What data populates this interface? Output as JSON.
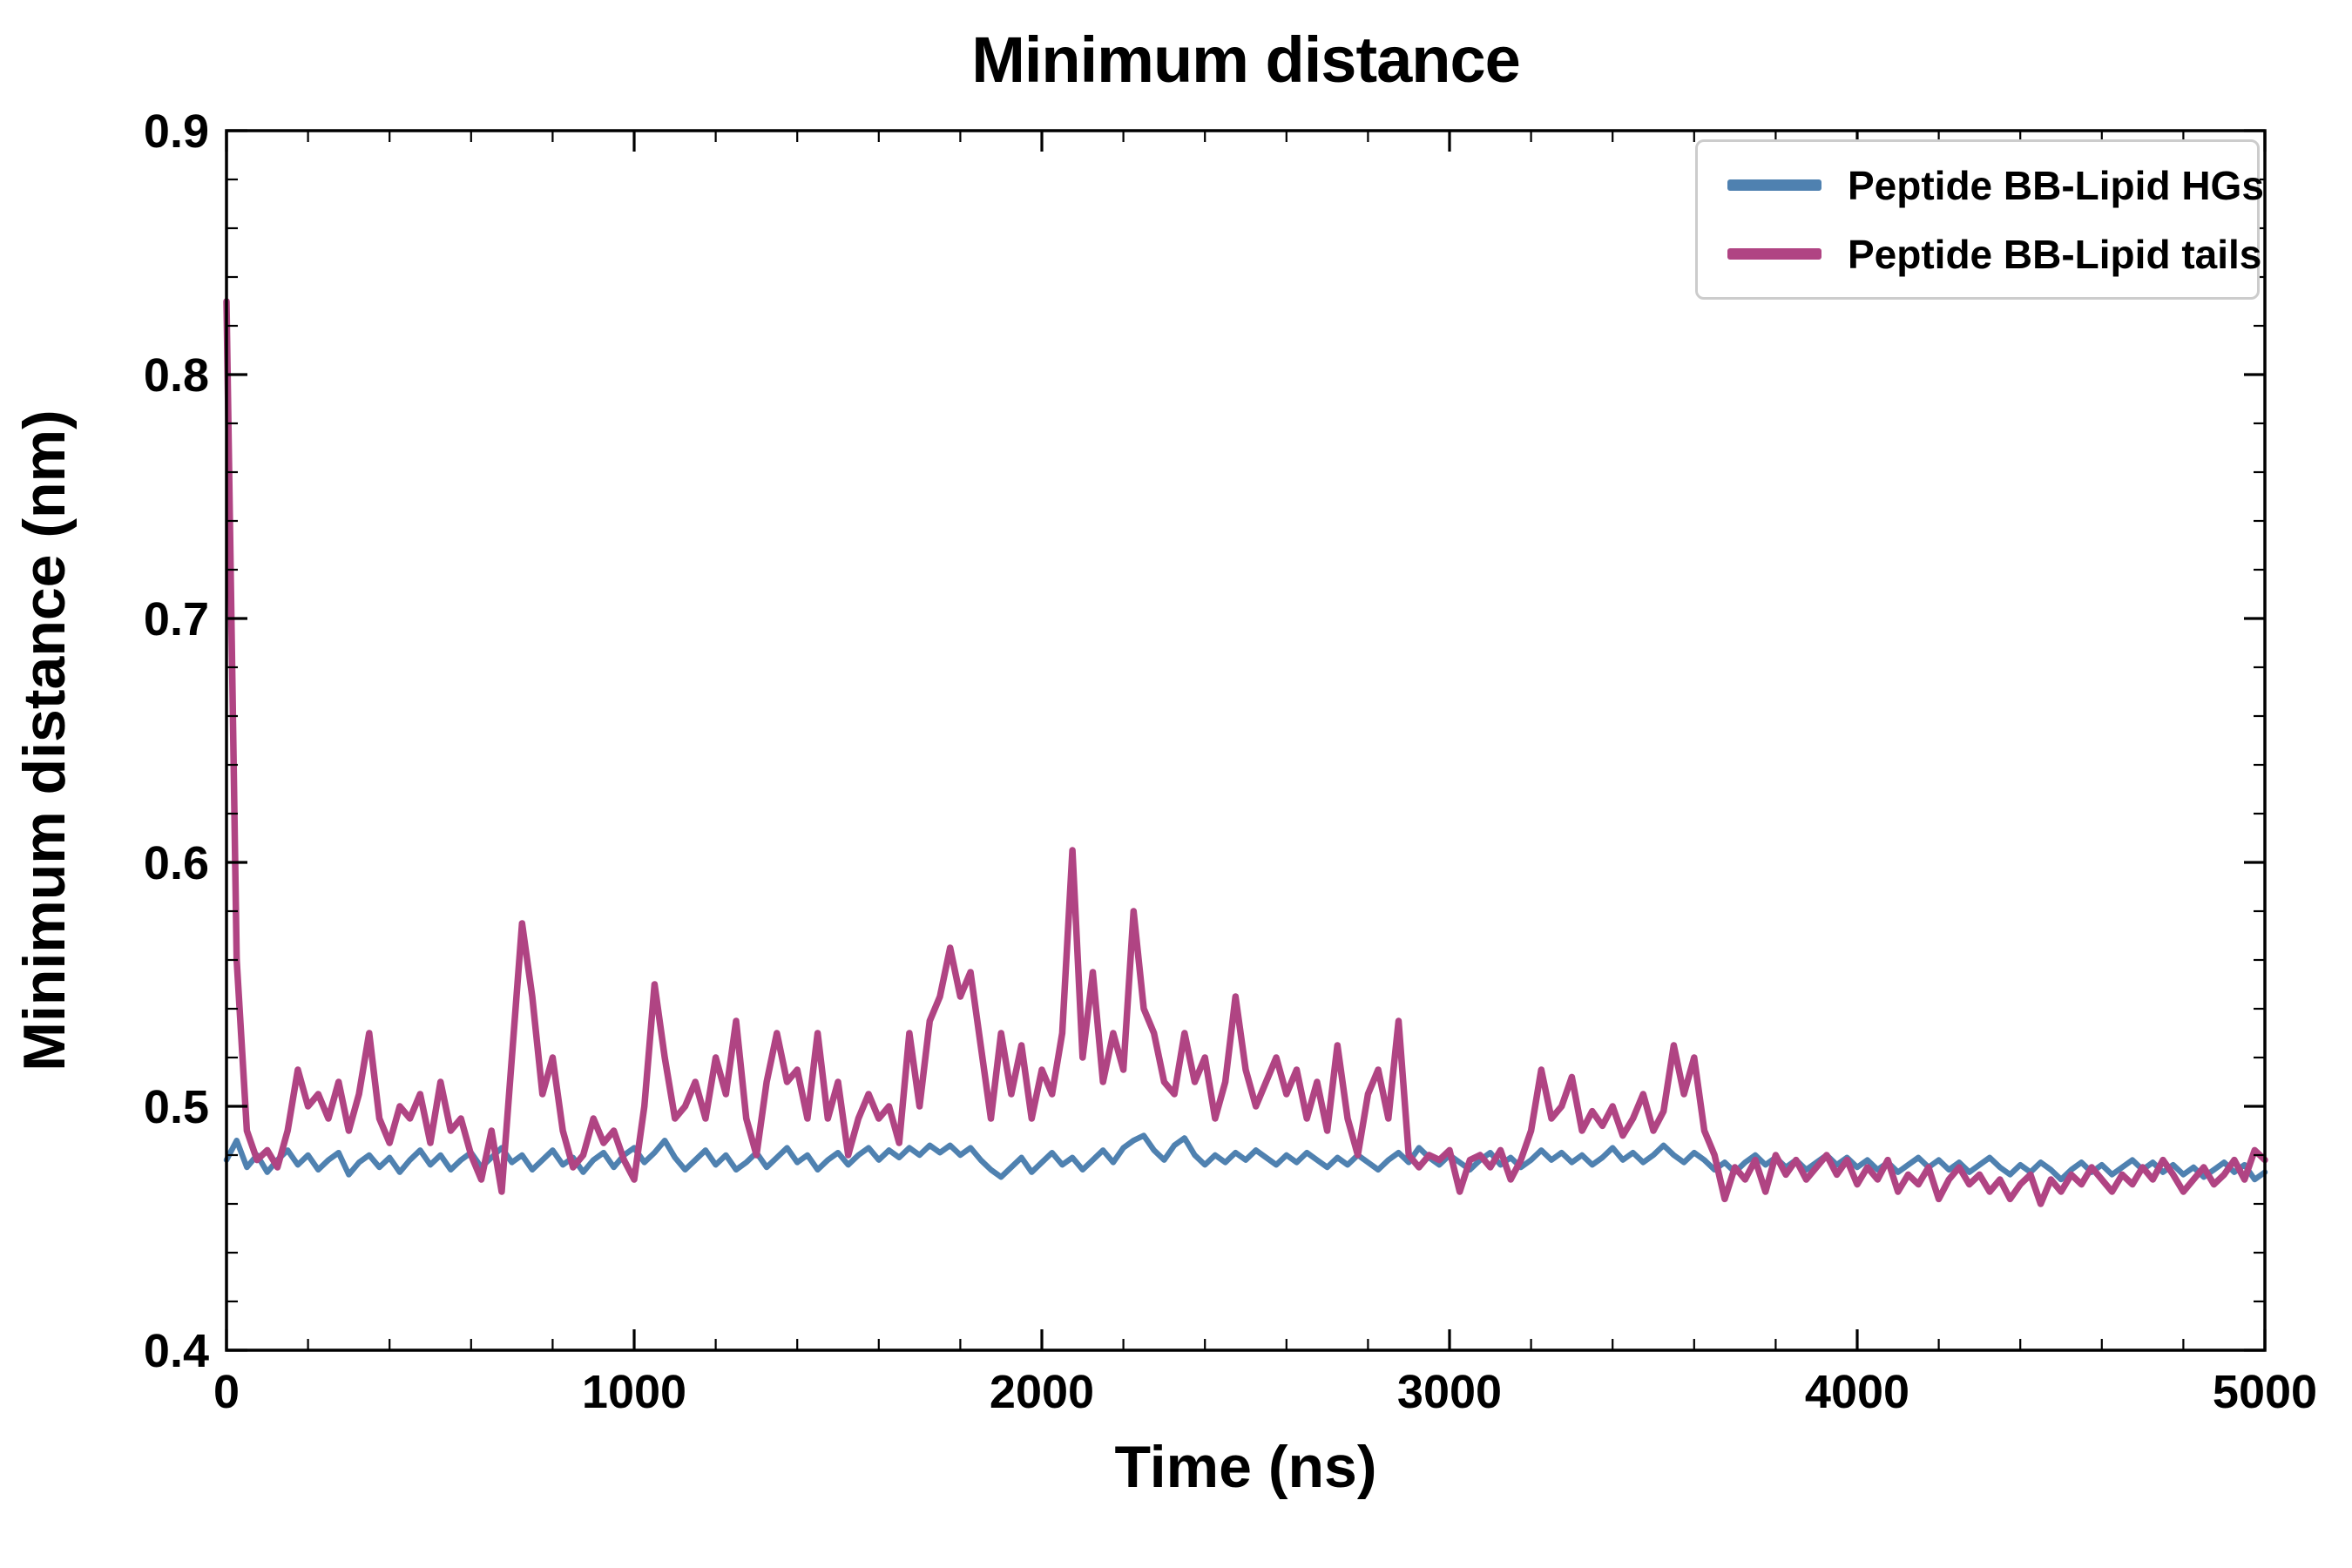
{
  "page": {
    "background": "#ffffff"
  },
  "chart": {
    "title": "Minimum distance",
    "xlabel": "Time (ns)",
    "ylabel": "Minimum distance (nm)"
  },
  "legend": {
    "items": [
      {
        "label": "Peptide BB-Lipid HGs",
        "color": "#4f81b0"
      },
      {
        "label": "Peptide BB-Lipid tails",
        "color": "#b04483"
      }
    ]
  },
  "chart_data": {
    "type": "line",
    "title": "Minimum distance",
    "xlabel": "Time (ns)",
    "ylabel": "Minimum distance (nm)",
    "xlim": [
      0,
      5000
    ],
    "ylim": [
      0.4,
      0.9
    ],
    "grid": false,
    "legend_position": "upper right",
    "x_ticks": [
      0,
      1000,
      2000,
      3000,
      4000,
      5000
    ],
    "x_tick_labels": [
      "0",
      "1000",
      "2000",
      "3000",
      "4000",
      "5000"
    ],
    "y_ticks": [
      0.4,
      0.5,
      0.6,
      0.7,
      0.8,
      0.9
    ],
    "y_tick_labels": [
      "0.4",
      "0.5",
      "0.6",
      "0.7",
      "0.8",
      "0.9"
    ],
    "x_minor_step": 200,
    "y_minor_step": 0.02,
    "x": [
      0,
      25,
      50,
      75,
      100,
      125,
      150,
      175,
      200,
      225,
      250,
      275,
      300,
      325,
      350,
      375,
      400,
      425,
      450,
      475,
      500,
      525,
      550,
      575,
      600,
      625,
      650,
      675,
      700,
      725,
      750,
      775,
      800,
      825,
      850,
      875,
      900,
      925,
      950,
      975,
      1000,
      1025,
      1050,
      1075,
      1100,
      1125,
      1150,
      1175,
      1200,
      1225,
      1250,
      1275,
      1300,
      1325,
      1350,
      1375,
      1400,
      1425,
      1450,
      1475,
      1500,
      1525,
      1550,
      1575,
      1600,
      1625,
      1650,
      1675,
      1700,
      1725,
      1750,
      1775,
      1800,
      1825,
      1850,
      1875,
      1900,
      1925,
      1950,
      1975,
      2000,
      2025,
      2050,
      2075,
      2100,
      2125,
      2150,
      2175,
      2200,
      2225,
      2250,
      2275,
      2300,
      2325,
      2350,
      2375,
      2400,
      2425,
      2450,
      2475,
      2500,
      2525,
      2550,
      2575,
      2600,
      2625,
      2650,
      2675,
      2700,
      2725,
      2750,
      2775,
      2800,
      2825,
      2850,
      2875,
      2900,
      2925,
      2950,
      2975,
      3000,
      3025,
      3050,
      3075,
      3100,
      3125,
      3150,
      3175,
      3200,
      3225,
      3250,
      3275,
      3300,
      3325,
      3350,
      3375,
      3400,
      3425,
      3450,
      3475,
      3500,
      3525,
      3550,
      3575,
      3600,
      3625,
      3650,
      3675,
      3700,
      3725,
      3750,
      3775,
      3800,
      3825,
      3850,
      3875,
      3900,
      3925,
      3950,
      3975,
      4000,
      4025,
      4050,
      4075,
      4100,
      4125,
      4150,
      4175,
      4200,
      4225,
      4250,
      4275,
      4300,
      4325,
      4350,
      4375,
      4400,
      4425,
      4450,
      4475,
      4500,
      4525,
      4550,
      4575,
      4600,
      4625,
      4650,
      4675,
      4700,
      4725,
      4750,
      4775,
      4800,
      4825,
      4850,
      4875,
      4900,
      4925,
      4950,
      4975,
      5000
    ],
    "series": [
      {
        "name": "Peptide BB-Lipid HGs",
        "color": "#4f81b0",
        "width": 6.5,
        "values": [
          0.478,
          0.486,
          0.475,
          0.48,
          0.473,
          0.478,
          0.482,
          0.476,
          0.48,
          0.474,
          0.478,
          0.481,
          0.472,
          0.477,
          0.48,
          0.475,
          0.479,
          0.473,
          0.478,
          0.482,
          0.476,
          0.48,
          0.474,
          0.478,
          0.481,
          0.475,
          0.479,
          0.483,
          0.477,
          0.48,
          0.474,
          0.478,
          0.482,
          0.476,
          0.479,
          0.473,
          0.478,
          0.481,
          0.475,
          0.48,
          0.483,
          0.477,
          0.481,
          0.486,
          0.479,
          0.474,
          0.478,
          0.482,
          0.476,
          0.48,
          0.474,
          0.477,
          0.481,
          0.475,
          0.479,
          0.483,
          0.477,
          0.48,
          0.474,
          0.478,
          0.481,
          0.476,
          0.48,
          0.483,
          0.478,
          0.482,
          0.479,
          0.483,
          0.48,
          0.484,
          0.481,
          0.484,
          0.48,
          0.483,
          0.478,
          0.474,
          0.471,
          0.475,
          0.479,
          0.473,
          0.477,
          0.481,
          0.476,
          0.479,
          0.474,
          0.478,
          0.482,
          0.477,
          0.483,
          0.486,
          0.488,
          0.482,
          0.478,
          0.484,
          0.487,
          0.48,
          0.476,
          0.48,
          0.477,
          0.481,
          0.478,
          0.482,
          0.479,
          0.476,
          0.48,
          0.477,
          0.481,
          0.478,
          0.475,
          0.479,
          0.476,
          0.48,
          0.477,
          0.474,
          0.478,
          0.481,
          0.477,
          0.483,
          0.479,
          0.476,
          0.48,
          0.477,
          0.474,
          0.478,
          0.481,
          0.476,
          0.479,
          0.475,
          0.478,
          0.482,
          0.478,
          0.481,
          0.477,
          0.48,
          0.476,
          0.479,
          0.483,
          0.478,
          0.481,
          0.477,
          0.48,
          0.484,
          0.48,
          0.477,
          0.481,
          0.478,
          0.474,
          0.477,
          0.473,
          0.477,
          0.48,
          0.476,
          0.479,
          0.475,
          0.478,
          0.474,
          0.477,
          0.48,
          0.476,
          0.479,
          0.475,
          0.478,
          0.474,
          0.477,
          0.473,
          0.476,
          0.479,
          0.475,
          0.478,
          0.474,
          0.477,
          0.473,
          0.476,
          0.479,
          0.475,
          0.472,
          0.476,
          0.473,
          0.477,
          0.474,
          0.47,
          0.474,
          0.477,
          0.473,
          0.476,
          0.472,
          0.475,
          0.478,
          0.474,
          0.477,
          0.473,
          0.476,
          0.472,
          0.475,
          0.471,
          0.474,
          0.477,
          0.473,
          0.476,
          0.47,
          0.473
        ]
      },
      {
        "name": "Peptide BB-Lipid tails",
        "color": "#b04483",
        "width": 7.5,
        "values": [
          0.83,
          0.56,
          0.49,
          0.478,
          0.482,
          0.475,
          0.49,
          0.515,
          0.5,
          0.505,
          0.495,
          0.51,
          0.49,
          0.505,
          0.53,
          0.495,
          0.485,
          0.5,
          0.495,
          0.505,
          0.485,
          0.51,
          0.49,
          0.495,
          0.48,
          0.47,
          0.49,
          0.465,
          0.52,
          0.575,
          0.545,
          0.505,
          0.52,
          0.49,
          0.475,
          0.48,
          0.495,
          0.485,
          0.49,
          0.478,
          0.47,
          0.5,
          0.55,
          0.52,
          0.495,
          0.5,
          0.51,
          0.495,
          0.52,
          0.505,
          0.535,
          0.495,
          0.48,
          0.51,
          0.53,
          0.51,
          0.515,
          0.495,
          0.53,
          0.495,
          0.51,
          0.48,
          0.495,
          0.505,
          0.495,
          0.5,
          0.485,
          0.53,
          0.5,
          0.535,
          0.545,
          0.565,
          0.545,
          0.555,
          0.525,
          0.495,
          0.53,
          0.505,
          0.525,
          0.495,
          0.515,
          0.505,
          0.53,
          0.605,
          0.52,
          0.555,
          0.51,
          0.53,
          0.515,
          0.58,
          0.54,
          0.53,
          0.51,
          0.505,
          0.53,
          0.51,
          0.52,
          0.495,
          0.51,
          0.545,
          0.515,
          0.5,
          0.51,
          0.52,
          0.505,
          0.515,
          0.495,
          0.51,
          0.49,
          0.525,
          0.495,
          0.48,
          0.505,
          0.515,
          0.495,
          0.535,
          0.48,
          0.475,
          0.48,
          0.478,
          0.482,
          0.465,
          0.478,
          0.48,
          0.475,
          0.482,
          0.47,
          0.478,
          0.49,
          0.515,
          0.495,
          0.5,
          0.512,
          0.49,
          0.498,
          0.492,
          0.5,
          0.488,
          0.495,
          0.505,
          0.49,
          0.498,
          0.525,
          0.505,
          0.52,
          0.49,
          0.48,
          0.462,
          0.475,
          0.47,
          0.478,
          0.465,
          0.48,
          0.472,
          0.478,
          0.47,
          0.475,
          0.48,
          0.472,
          0.478,
          0.468,
          0.475,
          0.47,
          0.478,
          0.465,
          0.472,
          0.468,
          0.475,
          0.462,
          0.47,
          0.475,
          0.468,
          0.472,
          0.465,
          0.47,
          0.462,
          0.468,
          0.472,
          0.46,
          0.47,
          0.465,
          0.472,
          0.468,
          0.475,
          0.47,
          0.465,
          0.472,
          0.468,
          0.475,
          0.47,
          0.478,
          0.472,
          0.465,
          0.47,
          0.475,
          0.468,
          0.472,
          0.478,
          0.47,
          0.482,
          0.478
        ]
      }
    ]
  }
}
